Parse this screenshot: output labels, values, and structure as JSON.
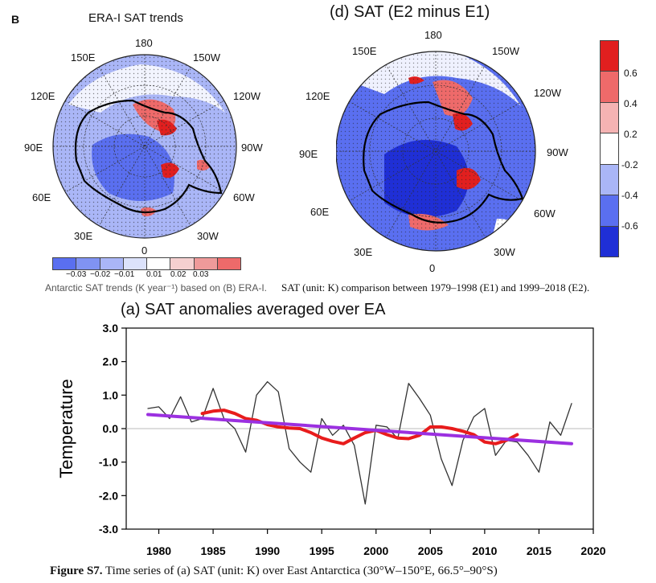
{
  "panel_b": {
    "letter": "B",
    "title": "ERA-I SAT trends",
    "lon_labels": [
      "180",
      "150E",
      "150W",
      "120E",
      "120W",
      "90E",
      "90W",
      "60E",
      "60W",
      "30E",
      "30W",
      "0"
    ],
    "colorbar_ticks": [
      "−0.03",
      "−0.02",
      "−0.01",
      "0.01",
      "0.02",
      "0.03"
    ],
    "caption": "Antarctic SAT trends (K year⁻¹) based on (B) ERA-I."
  },
  "panel_d": {
    "title": "(d) SAT (E2 minus E1)",
    "lon_labels": [
      "180",
      "150E",
      "150W",
      "120E",
      "120W",
      "90E",
      "90W",
      "60E",
      "60W",
      "30E",
      "30W",
      "0"
    ],
    "colorbar_ticks": [
      "0.6",
      "0.4",
      "0.2",
      "-0.2",
      "-0.4",
      "-0.6"
    ],
    "caption": "SAT (unit: K) comparison between 1979–1998 (E1) and 1999–2018 (E2)."
  },
  "colors": {
    "blue_dark": "#1f2fd6",
    "blue_mid": "#5a6ff0",
    "blue_light": "#aab6f7",
    "red_dark": "#e11f1f",
    "red_mid": "#ee6a6a",
    "red_light": "#f5b3b3",
    "anomaly_line": "#333333",
    "running_mean": "#e81c1c",
    "trend": "#9b30e0"
  },
  "chart_data": {
    "type": "line",
    "title": "(a) SAT anomalies averaged over EA",
    "ylabel": "Temperature",
    "xlabel": "",
    "xlim": [
      1977,
      2020
    ],
    "ylim": [
      -3.0,
      3.0
    ],
    "x_ticks": [
      1980,
      1985,
      1990,
      1995,
      2000,
      2005,
      2010,
      2015,
      2020
    ],
    "y_ticks": [
      "3.0",
      "2.0",
      "1.0",
      "0.0",
      "-1.0",
      "-2.0",
      "-3.0"
    ],
    "y_tick_values": [
      3,
      2,
      1,
      0,
      -1,
      -2,
      -3
    ],
    "zero_line": true,
    "series": [
      {
        "x": [
          1979,
          1980,
          1981,
          1982,
          1983,
          1984,
          1985,
          1986,
          1987,
          1988,
          1989,
          1990,
          1991,
          1992,
          1993,
          1994,
          1995,
          1996,
          1997,
          1998,
          1999,
          2000,
          2001,
          2002,
          2003,
          2004,
          2005,
          2006,
          2007,
          2008,
          2009,
          2010,
          2011,
          2012,
          2013,
          2014,
          2015,
          2016,
          2017,
          2018
        ],
        "y": [
          0.6,
          0.65,
          0.3,
          0.95,
          0.2,
          0.3,
          1.2,
          0.3,
          0.0,
          -0.7,
          1.0,
          1.4,
          1.1,
          -0.6,
          -1.0,
          -1.3,
          0.3,
          -0.2,
          0.1,
          -0.5,
          -2.25,
          0.1,
          0.05,
          -0.3,
          1.35,
          0.9,
          0.4,
          -0.9,
          -1.7,
          -0.35,
          0.35,
          0.6,
          -0.8,
          -0.35,
          -0.4,
          -0.8,
          -1.3,
          0.2,
          -0.2,
          0.75
        ]
      },
      {
        "x": [
          1984,
          1985,
          1986,
          1987,
          1988,
          1989,
          1990,
          1991,
          1992,
          1993,
          1994,
          1995,
          1996,
          1997,
          1998,
          1999,
          2000,
          2001,
          2002,
          2003,
          2004,
          2005,
          2006,
          2007,
          2008,
          2009,
          2010,
          2011,
          2012,
          2013
        ],
        "y": [
          0.45,
          0.52,
          0.55,
          0.45,
          0.3,
          0.25,
          0.12,
          0.05,
          0.02,
          0.0,
          -0.12,
          -0.28,
          -0.38,
          -0.45,
          -0.28,
          -0.12,
          -0.05,
          -0.18,
          -0.28,
          -0.3,
          -0.2,
          0.05,
          0.05,
          0.0,
          -0.08,
          -0.18,
          -0.4,
          -0.45,
          -0.35,
          -0.18
        ]
      },
      {
        "x": [
          1979,
          2018
        ],
        "y": [
          0.42,
          -0.45
        ]
      }
    ]
  },
  "figure_caption": {
    "label": "Figure S7.",
    "text": " Time series of (a) SAT (unit: K) over East Antarctica (30°W–150°E, 66.5°–90°S)"
  }
}
